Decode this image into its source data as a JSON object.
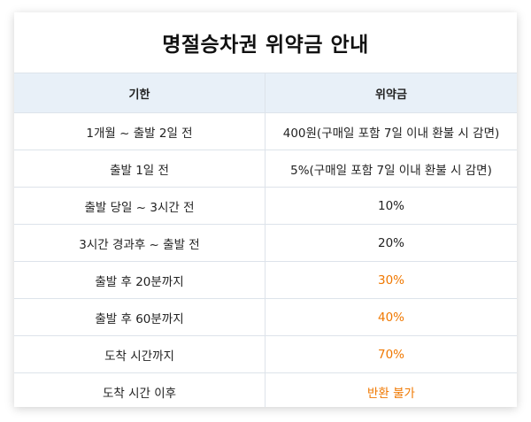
{
  "title": "명절승차권 위약금 안내",
  "columns": [
    "기한",
    "위약금"
  ],
  "accent_color": "#f07800",
  "rows": [
    {
      "period": "1개월 ~ 출발 2일 전",
      "penalty": "400원(구매일 포함 7일 이내 환불 시 감면)",
      "highlight": false
    },
    {
      "period": "출발 1일 전",
      "penalty": "5%(구매일 포함 7일 이내 환불 시 감면)",
      "highlight": false
    },
    {
      "period": "출발 당일 ~ 3시간 전",
      "penalty": "10%",
      "highlight": false
    },
    {
      "period": "3시간 경과후 ~ 출발 전",
      "penalty": "20%",
      "highlight": false
    },
    {
      "period": "출발 후 20분까지",
      "penalty": "30%",
      "highlight": true
    },
    {
      "period": "출발 후 60분까지",
      "penalty": "40%",
      "highlight": true
    },
    {
      "period": "도착 시간까지",
      "penalty": "70%",
      "highlight": true
    },
    {
      "period": "도착 시간 이후",
      "penalty": "반환 불가",
      "highlight": true
    }
  ]
}
